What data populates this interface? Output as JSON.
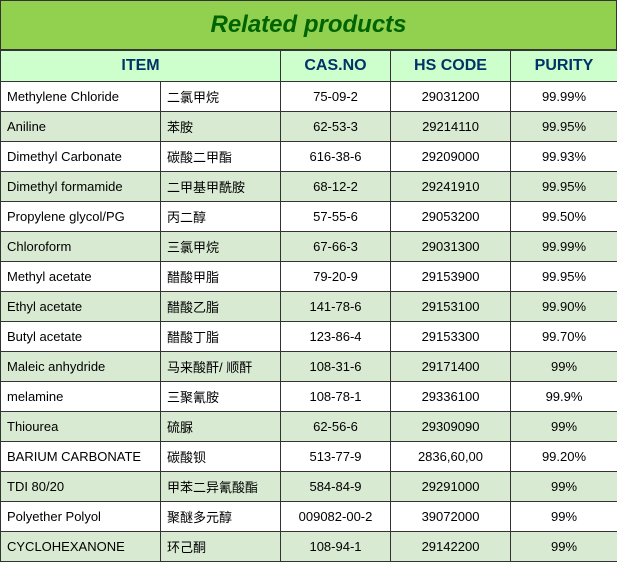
{
  "title": "Related products",
  "colors": {
    "title_bg": "#92d050",
    "title_fg": "#006400",
    "header_bg": "#ccffcc",
    "header_fg": "#003366",
    "row_odd_bg": "#ffffff",
    "row_even_bg": "#d9ead3",
    "border": "#333333"
  },
  "columns": {
    "item": "ITEM",
    "cas": "CAS.NO",
    "hs": "HS CODE",
    "purity": "PURITY"
  },
  "rows": [
    {
      "en": "Methylene Chloride",
      "cn": "二氯甲烷",
      "cas": "75-09-2",
      "hs": "29031200",
      "purity": "99.99%"
    },
    {
      "en": "Aniline",
      "cn": "苯胺",
      "cas": "62-53-3",
      "hs": "29214110",
      "purity": "99.95%"
    },
    {
      "en": "Dimethyl Carbonate",
      "cn": "碳酸二甲酯",
      "cas": "616-38-6",
      "hs": "29209000",
      "purity": "99.93%"
    },
    {
      "en": "Dimethyl  formamide",
      "cn": "二甲基甲酰胺",
      "cas": "68-12-2",
      "hs": "29241910",
      "purity": "99.95%"
    },
    {
      "en": "Propylene glycol/PG",
      "cn": "丙二醇",
      "cas": "57-55-6",
      "hs": "29053200",
      "purity": "99.50%"
    },
    {
      "en": "Chloroform",
      "cn": "三氯甲烷",
      "cas": "67-66-3",
      "hs": "29031300",
      "purity": "99.99%"
    },
    {
      "en": "Methyl acetate",
      "cn": "醋酸甲脂",
      "cas": "79-20-9",
      "hs": "29153900",
      "purity": "99.95%"
    },
    {
      "en": "Ethyl   acetate",
      "cn": "醋酸乙脂",
      "cas": "141-78-6",
      "hs": "29153100",
      "purity": "99.90%"
    },
    {
      "en": "Butyl   acetate",
      "cn": "醋酸丁脂",
      "cas": "123-86-4",
      "hs": "29153300",
      "purity": "99.70%"
    },
    {
      "en": "Maleic anhydride",
      "cn": "马来酸酐/ 顺酐",
      "cas": "108-31-6",
      "hs": "29171400",
      "purity": "99%"
    },
    {
      "en": "melamine",
      "cn": "三聚氰胺",
      "cas": "108-78-1",
      "hs": "29336100",
      "purity": "99.9%"
    },
    {
      "en": "Thiourea",
      "cn": "硫脲",
      "cas": "62-56-6",
      "hs": "29309090",
      "purity": "99%"
    },
    {
      "en": "BARIUM CARBONATE",
      "cn": "碳酸钡",
      "cas": "513-77-9",
      "hs": "2836,60,00",
      "purity": "99.20%"
    },
    {
      "en": "TDI 80/20",
      "cn": "甲苯二异氰酸酯",
      "cas": "584-84-9",
      "hs": "29291000",
      "purity": "99%"
    },
    {
      "en": "Polyether Polyol",
      "cn": "聚醚多元醇",
      "cas": "009082-00-2",
      "hs": "39072000",
      "purity": "99%"
    },
    {
      "en": "CYCLOHEXANONE",
      "cn": "环己酮",
      "cas": "108-94-1",
      "hs": "29142200",
      "purity": "99%"
    }
  ]
}
